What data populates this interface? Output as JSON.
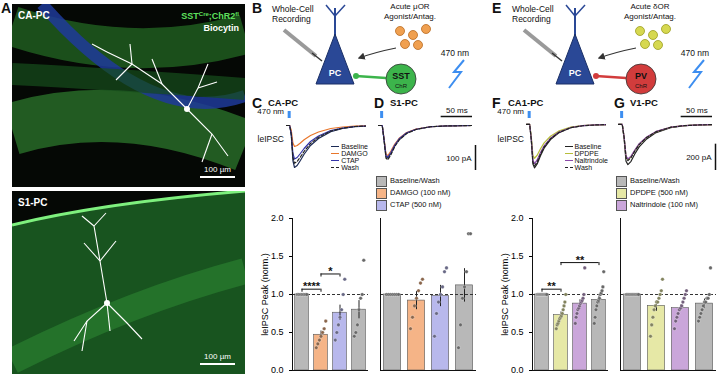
{
  "figure": {
    "A": {
      "panel_label": "A",
      "images": [
        {
          "label": "CA-PC",
          "legend": [
            [
              {
                "text": "SST"
              },
              {
                "text": "Cre",
                "sup": true
              },
              {
                "text": ";ChR2"
              },
              {
                "text": "fl",
                "sup": true
              }
            ],
            [
              {
                "text": "Biocytin"
              }
            ]
          ],
          "scale_bar": "100 µm"
        },
        {
          "label": "S1-PC",
          "scale_bar": "100 µm"
        }
      ]
    },
    "B": {
      "panel_label": "B",
      "recording": [
        "Whole-Cell",
        "Recording"
      ],
      "drug": [
        "Acute μOR",
        "Agonist/Antag."
      ],
      "light": "470 nm",
      "cell": "PC",
      "source": "SST",
      "opsin": "ChR"
    },
    "E": {
      "panel_label": "E",
      "recording": [
        "Whole-Cell",
        "Recording"
      ],
      "drug": [
        "Acute δOR",
        "Agonist/Antag."
      ],
      "light": "470 nm",
      "cell": "PC",
      "source": "PV",
      "opsin": "ChR"
    }
  },
  "chart_data": [
    {
      "type": "line",
      "panel_label": "C",
      "title": "CA-PC",
      "ylabel": "leIPSC",
      "light_label": "470 nm",
      "stimulus_time": 5,
      "x": [
        0,
        6,
        9,
        12,
        15,
        20,
        26,
        33,
        45,
        60,
        83,
        105,
        128,
        150
      ],
      "xlim": [
        0,
        150
      ],
      "ylim": [
        -180,
        20
      ],
      "tick_labels": false,
      "legend": "bottom-right",
      "series": [
        {
          "name": "Baseline",
          "color": "#1b2a55",
          "values": [
            0,
            0,
            -40,
            -140,
            -168,
            -160,
            -140,
            -115,
            -80,
            -52,
            -25,
            -12,
            -5,
            -2
          ]
        },
        {
          "name": "DAMGO",
          "color": "#e8762b",
          "values": [
            0,
            0,
            -20,
            -70,
            -84,
            -80,
            -70,
            -57,
            -40,
            -26,
            -12,
            -6,
            -2,
            -1
          ]
        },
        {
          "name": "CTAP",
          "color": "#3434a8",
          "values": [
            0,
            0,
            -32,
            -112,
            -134,
            -128,
            -112,
            -92,
            -64,
            -42,
            -20,
            -10,
            -4,
            -2
          ]
        },
        {
          "name": "Wash",
          "color": "#222222",
          "line_style": "dashed",
          "values": [
            0,
            0,
            -36,
            -126,
            -151,
            -144,
            -126,
            -104,
            -72,
            -47,
            -22,
            -11,
            -4,
            -2
          ]
        }
      ]
    },
    {
      "type": "bar",
      "ylabel": "leIPSC Peak (norm.)",
      "categories": [
        null,
        null,
        null,
        null
      ],
      "ylim": [
        0,
        2
      ],
      "yticks": [
        {
          "value": 0,
          "label": "0.0"
        },
        {
          "value": 0.5,
          "label": "0.5"
        },
        {
          "value": 1,
          "label": "1.0"
        },
        {
          "value": 1.5,
          "label": "1.5"
        },
        {
          "value": 2,
          "label": "2.0"
        }
      ],
      "tick_labels": "y",
      "series": [
        {
          "color": "#b8b8b8",
          "values": [
            1.0,
            null,
            null,
            0.8
          ],
          "errors": [
            0,
            null,
            null,
            0.12
          ],
          "points": [
            [
              1,
              1,
              1,
              1,
              1,
              1,
              1
            ],
            null,
            null,
            [
              0.45,
              0.5,
              0.6,
              0.8,
              0.95,
              1.0,
              1.45
            ]
          ]
        },
        {
          "color": "#f5b487",
          "values": [
            null,
            0.47,
            null,
            null
          ],
          "errors": [
            null,
            0.05,
            null,
            null
          ],
          "points": [
            null,
            [
              0.3,
              0.35,
              0.4,
              0.45,
              0.5,
              0.55,
              0.65
            ],
            null,
            null
          ]
        },
        {
          "color": "#b8b8ec",
          "values": [
            null,
            null,
            0.76,
            null
          ],
          "errors": [
            null,
            null,
            0.1,
            null
          ],
          "points": [
            null,
            null,
            [
              0.4,
              0.5,
              0.6,
              0.7,
              0.8,
              1.0,
              1.2
            ],
            null
          ]
        }
      ],
      "annotations": [
        {
          "from": 0,
          "to": 1,
          "label": "****"
        },
        {
          "from": 1,
          "to": 2,
          "label": "*"
        }
      ]
    },
    {
      "type": "line",
      "panel_label": "D",
      "title": "S1-PC",
      "stimulus_time": 5,
      "x": [
        0,
        6,
        9,
        12,
        15,
        20,
        26,
        33,
        45,
        60,
        83,
        105,
        128,
        150
      ],
      "xlim": [
        0,
        150
      ],
      "ylim": [
        -180,
        20
      ],
      "tick_labels": false,
      "scale_bars": {
        "x": {
          "value": 50,
          "label": "50 ms"
        },
        "y": {
          "value": 100,
          "label": "100 pA"
        }
      },
      "series": [
        {
          "color": "#1b2a55",
          "values": [
            0,
            0,
            -60,
            -125,
            -130,
            -110,
            -80,
            -55,
            -30,
            -15,
            -5,
            -2,
            -1,
            0
          ]
        },
        {
          "color": "#e8762b",
          "values": [
            0,
            0,
            -55,
            -115,
            -120,
            -101,
            -74,
            -51,
            -28,
            -14,
            -5,
            -2,
            -1,
            0
          ]
        },
        {
          "color": "#3434a8",
          "values": [
            0,
            0,
            -58,
            -121,
            -126,
            -107,
            -78,
            -53,
            -29,
            -15,
            -5,
            -2,
            -1,
            0
          ]
        },
        {
          "color": "#222222",
          "line_style": "dashed",
          "values": [
            0,
            0,
            -63,
            -131,
            -137,
            -116,
            -84,
            -58,
            -32,
            -16,
            -5,
            -2,
            -1,
            0
          ]
        }
      ]
    },
    {
      "type": "bar",
      "categories": [
        null,
        null,
        null,
        null
      ],
      "ylim": [
        0,
        2
      ],
      "tick_labels": false,
      "legend": "top",
      "series": [
        {
          "name": "Baseline/Wash",
          "color": "#b8b8b8",
          "values": [
            1.0,
            null,
            null,
            1.12
          ],
          "errors": [
            0,
            null,
            null,
            0.22
          ],
          "points": [
            [
              1,
              1,
              1,
              1,
              1,
              1,
              1
            ],
            null,
            null,
            [
              0.3,
              0.6,
              0.95,
              1.1,
              1.3,
              1.8,
              1.8
            ]
          ]
        },
        {
          "name": "DAMGO (100 nM)",
          "color": "#f5b487",
          "values": [
            null,
            0.92,
            null,
            null
          ],
          "errors": [
            null,
            0.12,
            null,
            null
          ],
          "points": [
            null,
            [
              0.55,
              0.7,
              0.85,
              0.95,
              1.05,
              1.15,
              1.2
            ],
            null,
            null
          ]
        },
        {
          "name": "CTAP (500 nM)",
          "color": "#b8b8ec",
          "values": [
            null,
            null,
            0.98,
            null
          ],
          "errors": [
            null,
            null,
            0.14,
            null
          ],
          "points": [
            null,
            null,
            [
              0.45,
              0.75,
              0.9,
              1.0,
              1.1,
              1.3,
              1.35
            ],
            null
          ]
        }
      ]
    },
    {
      "type": "line",
      "panel_label": "F",
      "title": "CA1-PC",
      "ylabel": "leIPSC",
      "light_label": "470 nm",
      "stimulus_time": 5,
      "x": [
        0,
        6,
        9,
        12,
        15,
        20,
        26,
        33,
        45,
        60,
        83,
        105,
        128,
        150
      ],
      "xlim": [
        0,
        150
      ],
      "ylim": [
        -350,
        30
      ],
      "tick_labels": false,
      "legend": "bottom-right",
      "series": [
        {
          "name": "Baseline",
          "color": "#222222",
          "values": [
            0,
            0,
            -120,
            -300,
            -330,
            -300,
            -240,
            -180,
            -115,
            -65,
            -25,
            -10,
            -4,
            -1
          ]
        },
        {
          "name": "DPDPE",
          "color": "#b7bd3a",
          "values": [
            0,
            0,
            -94,
            -234,
            -257,
            -234,
            -187,
            -140,
            -90,
            -51,
            -20,
            -8,
            -3,
            -1
          ]
        },
        {
          "name": "Naltrindole",
          "color": "#8a4aa8",
          "values": [
            0,
            0,
            -108,
            -270,
            -297,
            -270,
            -216,
            -162,
            -104,
            -59,
            -23,
            -9,
            -4,
            -1
          ]
        },
        {
          "name": "Wash",
          "color": "#222222",
          "line_style": "dashed",
          "values": [
            0,
            0,
            -114,
            -285,
            -314,
            -285,
            -228,
            -171,
            -109,
            -62,
            -24,
            -10,
            -4,
            -1
          ]
        }
      ]
    },
    {
      "type": "bar",
      "ylabel": "leIPSC Peak (norm.)",
      "categories": [
        null,
        null,
        null,
        null
      ],
      "ylim": [
        0,
        2
      ],
      "yticks": [
        {
          "value": 0,
          "label": "0.0"
        },
        {
          "value": 0.5,
          "label": "0.5"
        },
        {
          "value": 1,
          "label": "1.0"
        },
        {
          "value": 1.5,
          "label": "1.5"
        },
        {
          "value": 2,
          "label": "2.0"
        }
      ],
      "tick_labels": "y",
      "series": [
        {
          "color": "#b8b8b8",
          "values": [
            1.0,
            null,
            null,
            0.93
          ],
          "errors": [
            0,
            null,
            null,
            0.05
          ],
          "points": [
            [
              1,
              1,
              1,
              1,
              1,
              1,
              1,
              1,
              1,
              1,
              1,
              1
            ],
            null,
            null,
            [
              0.62,
              0.7,
              0.8,
              0.85,
              0.9,
              0.92,
              0.95,
              1.0,
              1.02,
              1.05,
              1.1,
              1.3
            ]
          ]
        },
        {
          "color": "#e6e8a6",
          "values": [
            null,
            0.73,
            null,
            null
          ],
          "errors": [
            null,
            0.04,
            null,
            null
          ],
          "points": [
            null,
            [
              0.55,
              0.6,
              0.62,
              0.65,
              0.68,
              0.7,
              0.72,
              0.75,
              0.8,
              0.85,
              0.9,
              1.0
            ],
            null,
            null
          ]
        },
        {
          "color": "#caa6da",
          "values": [
            null,
            null,
            0.88,
            null
          ],
          "errors": [
            null,
            null,
            0.05,
            null
          ],
          "points": [
            null,
            null,
            [
              0.62,
              0.7,
              0.75,
              0.8,
              0.82,
              0.85,
              0.88,
              0.9,
              0.92,
              0.95,
              1.0,
              1.35
            ],
            null
          ]
        }
      ],
      "annotations": [
        {
          "from": 0,
          "to": 1,
          "label": "**"
        },
        {
          "from": 1,
          "to": 3,
          "label": "**"
        }
      ]
    },
    {
      "type": "line",
      "panel_label": "G",
      "title": "V1-PC",
      "stimulus_time": 5,
      "x": [
        0,
        6,
        9,
        12,
        15,
        20,
        26,
        33,
        45,
        60,
        83,
        105,
        128,
        150
      ],
      "xlim": [
        0,
        150
      ],
      "ylim": [
        -350,
        30
      ],
      "tick_labels": false,
      "scale_bars": {
        "x": {
          "value": 50,
          "label": "50 ms"
        },
        "y": {
          "value": 200,
          "label": "200 pA"
        }
      },
      "series": [
        {
          "color": "#222222",
          "values": [
            0,
            0,
            -110,
            -280,
            -305,
            -280,
            -225,
            -170,
            -110,
            -62,
            -24,
            -10,
            -4,
            -1
          ]
        },
        {
          "color": "#b7bd3a",
          "values": [
            0,
            0,
            -97,
            -246,
            -268,
            -246,
            -198,
            -150,
            -97,
            -55,
            -21,
            -9,
            -4,
            -1
          ]
        },
        {
          "color": "#8a4aa8",
          "values": [
            0,
            0,
            -95,
            -241,
            -262,
            -241,
            -194,
            -146,
            -95,
            -53,
            -21,
            -9,
            -3,
            -1
          ]
        },
        {
          "color": "#222222",
          "line_style": "dashed",
          "values": [
            0,
            0,
            -99,
            -252,
            -275,
            -252,
            -203,
            -153,
            -99,
            -56,
            -22,
            -9,
            -4,
            -1
          ]
        }
      ]
    },
    {
      "type": "bar",
      "categories": [
        null,
        null,
        null,
        null
      ],
      "ylim": [
        0,
        2
      ],
      "tick_labels": false,
      "legend": "top",
      "series": [
        {
          "name": "Baseline/Wash",
          "color": "#b8b8b8",
          "values": [
            1.0,
            null,
            null,
            0.88
          ],
          "errors": [
            0,
            null,
            null,
            0.06
          ],
          "points": [
            [
              1,
              1,
              1,
              1,
              1,
              1,
              1,
              1,
              1,
              1,
              1
            ],
            null,
            null,
            [
              0.65,
              0.7,
              0.75,
              0.8,
              0.85,
              0.9,
              0.9,
              0.95,
              0.95,
              1.0,
              1.35
            ]
          ]
        },
        {
          "name": "DPDPE (500 nM)",
          "color": "#e6e8a6",
          "values": [
            null,
            0.85,
            null,
            null
          ],
          "errors": [
            null,
            0.07,
            null,
            null
          ],
          "points": [
            null,
            [
              0.45,
              0.6,
              0.7,
              0.8,
              0.85,
              0.9,
              0.9,
              0.95,
              1.0,
              1.05,
              1.2
            ],
            null,
            null
          ]
        },
        {
          "name": "Naltrindole (100 nM)",
          "color": "#caa6da",
          "values": [
            null,
            null,
            0.82,
            null
          ],
          "errors": [
            null,
            null,
            0.04,
            null
          ],
          "points": [
            null,
            null,
            [
              0.55,
              0.65,
              0.7,
              0.75,
              0.8,
              0.82,
              0.85,
              0.9,
              0.95,
              1.0,
              1.05
            ],
            null
          ]
        }
      ]
    }
  ]
}
